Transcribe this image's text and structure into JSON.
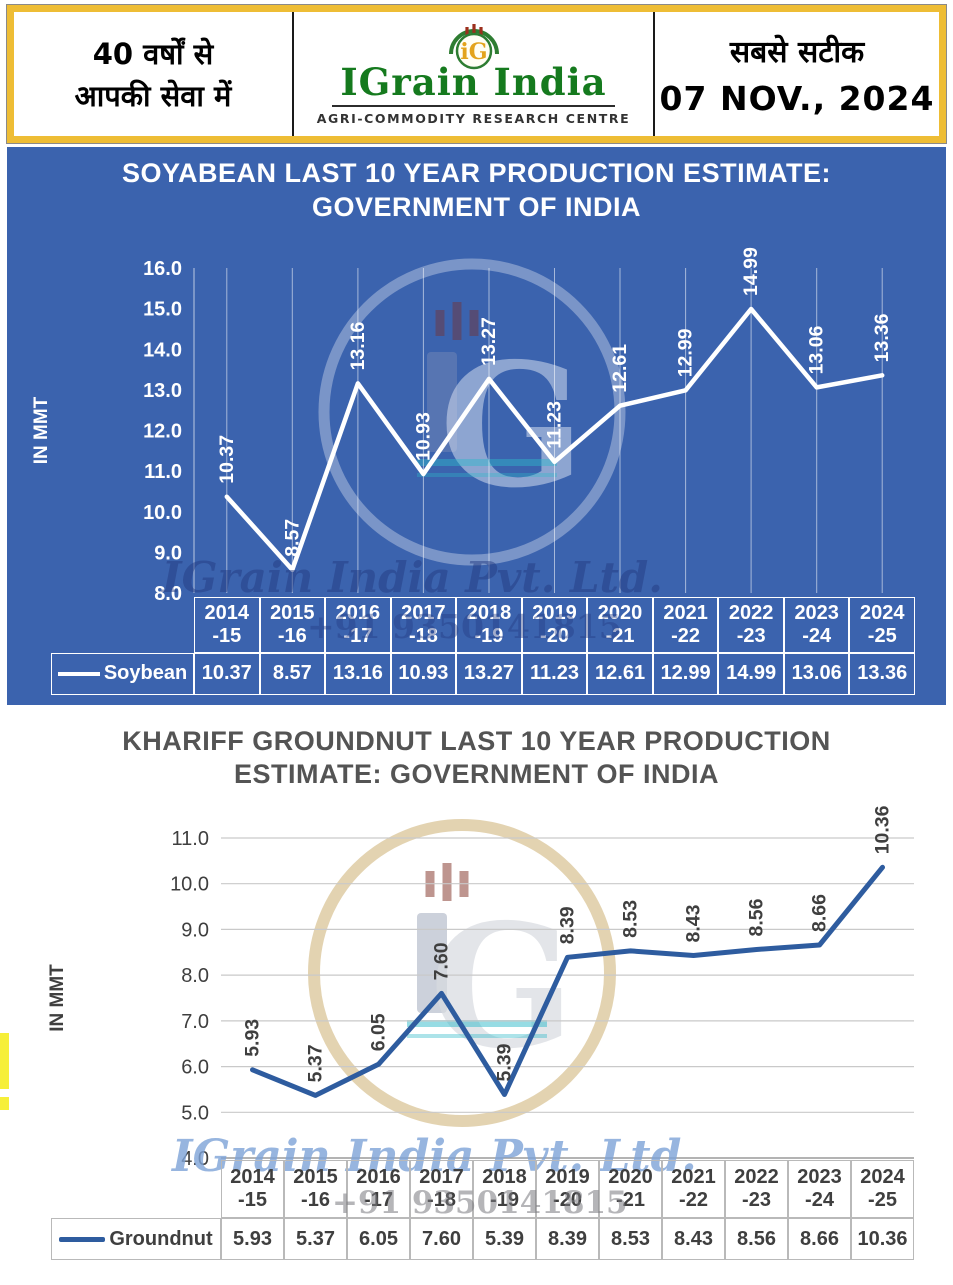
{
  "header": {
    "tagline_line1": "40 वर्षों से",
    "tagline_line2": "आपकी सेवा में",
    "logo_monogram": "iG",
    "brand": "IGrain India",
    "brand_subtitle": "AGRI-COMMODITY RESEARCH CENTRE",
    "accuracy_label": "सबसे सटीक",
    "date": "07 NOV., 2024",
    "colors": {
      "border_gold": "#EEBD35",
      "brand_green": "#157A1E",
      "text_black": "#111111"
    }
  },
  "watermark": {
    "company": "IGrain India Pvt. Ltd.",
    "phone": "+91 9350141815",
    "monogram": "G"
  },
  "chart_data": [
    {
      "type": "line",
      "title": "SOYABEAN LAST 10 YEAR PRODUCTION ESTIMATE: GOVERNMENT OF INDIA",
      "title_lines": [
        "SOYABEAN LAST 10 YEAR PRODUCTION ESTIMATE:",
        "GOVERNMENT OF INDIA"
      ],
      "categories": [
        "2014-15",
        "2015-16",
        "2016-17",
        "2017-18",
        "2018-19",
        "2019-20",
        "2020-21",
        "2021-22",
        "2022-23",
        "2023-24",
        "2024-25"
      ],
      "series": [
        {
          "name": "Soybean",
          "values": [
            10.37,
            8.57,
            13.16,
            10.93,
            13.27,
            11.23,
            12.61,
            12.99,
            14.99,
            13.06,
            13.36
          ]
        }
      ],
      "xlabel": "",
      "ylabel": "IN MMT",
      "ylim": [
        8.0,
        16.0
      ],
      "ytick_step": 1.0,
      "grid": "vertical",
      "legend_position": "bottom-table",
      "style": {
        "background": "#3B63AE",
        "line": "#FFFFFF",
        "text": "#FFFFFF",
        "title": "#FFFFFF",
        "grid": "rgba(255,255,255,0.55)",
        "cell_border": "#FFFFFF"
      }
    },
    {
      "type": "line",
      "title": "KHARIFF GROUNDNUT LAST 10 YEAR PRODUCTION ESTIMATE: GOVERNMENT OF INDIA",
      "title_lines": [
        "KHARIFF GROUNDNUT LAST 10 YEAR PRODUCTION",
        "ESTIMATE:  GOVERNMENT OF INDIA"
      ],
      "categories": [
        "2014-15",
        "2015-16",
        "2016-17",
        "2017-18",
        "2018-19",
        "2019-20",
        "2020-21",
        "2021-22",
        "2022-23",
        "2023-24",
        "2024-25"
      ],
      "series": [
        {
          "name": "Groundnut",
          "values": [
            5.93,
            5.37,
            6.05,
            7.6,
            5.39,
            8.39,
            8.53,
            8.43,
            8.56,
            8.66,
            10.36
          ]
        }
      ],
      "xlabel": "",
      "ylabel": "IN MMT",
      "ylim": [
        4.0,
        11.0
      ],
      "ytick_step": 1.0,
      "grid": "horizontal",
      "legend_position": "bottom-table",
      "style": {
        "background": "#FFFFFF",
        "line": "#2E5C9F",
        "text": "#3F3F3F",
        "title": "#545454",
        "grid": "#C9C9C9",
        "cell_border": "#B9B9B9"
      }
    }
  ]
}
